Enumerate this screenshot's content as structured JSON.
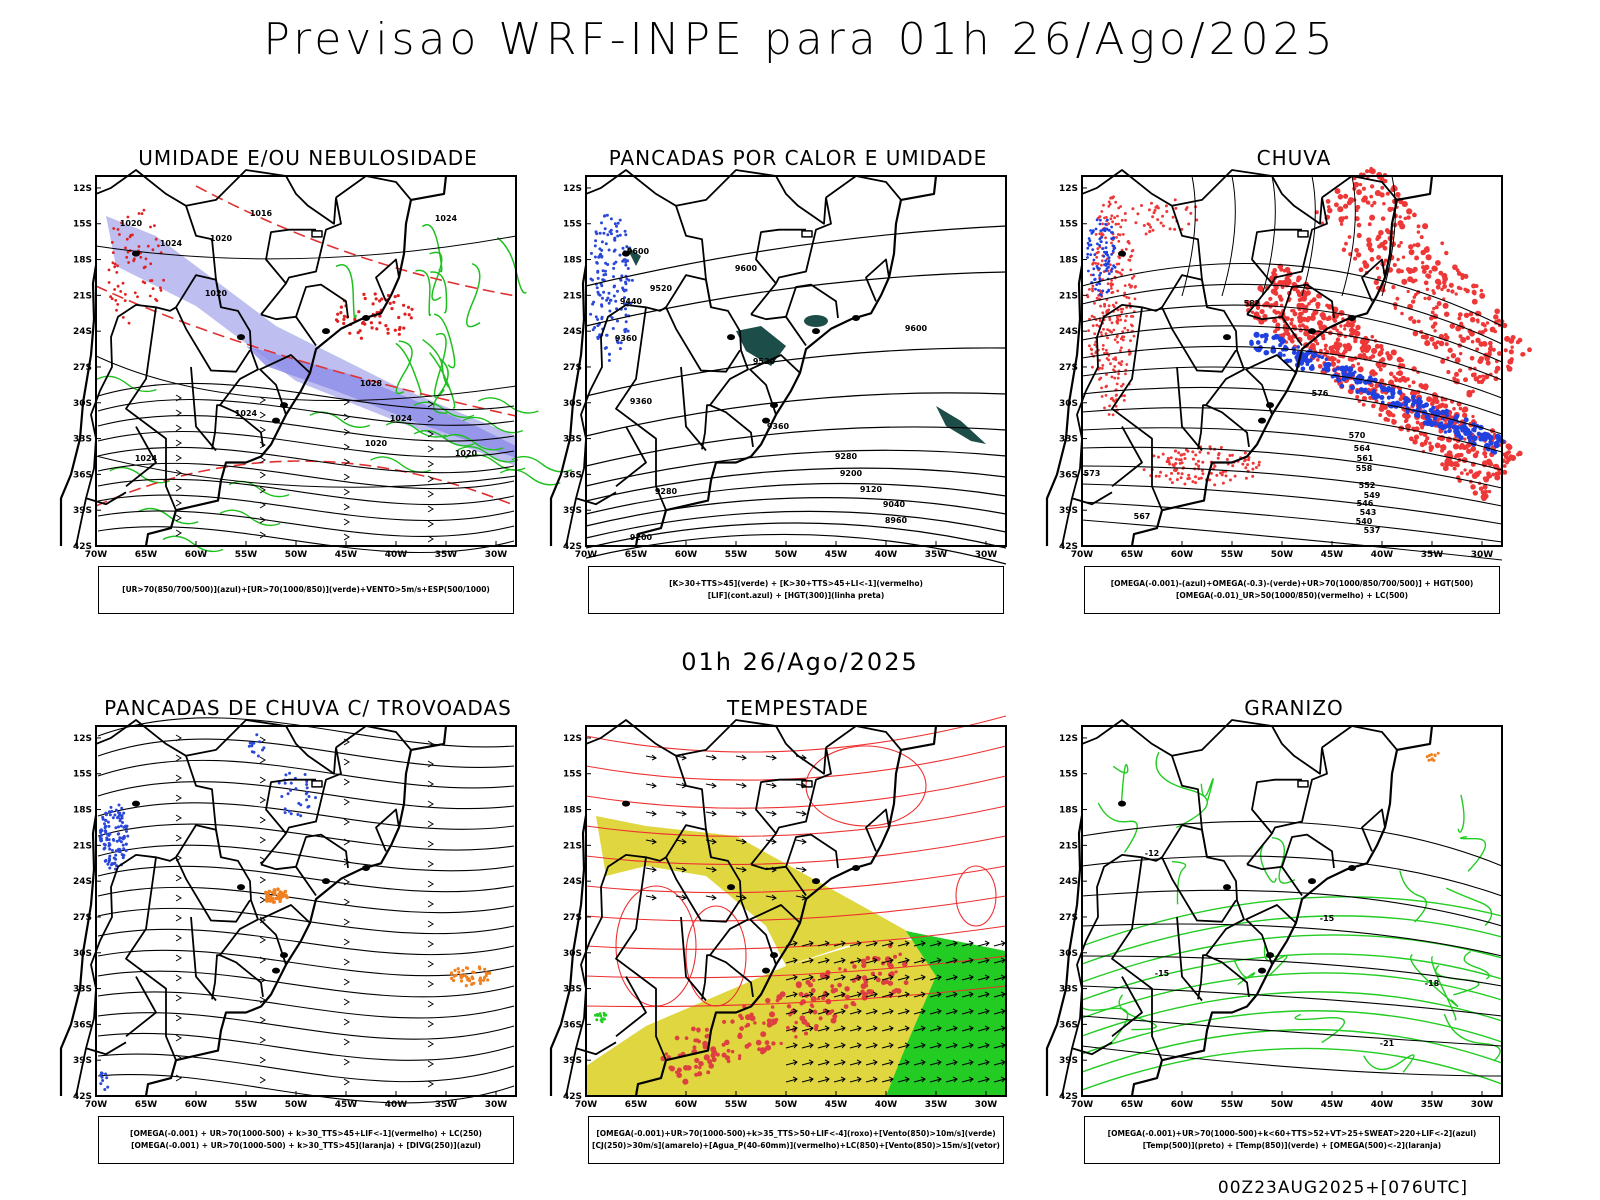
{
  "header": {
    "title": "Previsao WRF-INPE  para 01h 26/Ago/2025"
  },
  "middle": {
    "title": "01h 26/Ago/2025"
  },
  "footer": {
    "run": "00Z23AUG2025+[076UTC]"
  },
  "axes": {
    "yticks": [
      "12S",
      "15S",
      "18S",
      "21S",
      "24S",
      "27S",
      "30S",
      "33S",
      "36S",
      "39S",
      "42S"
    ],
    "xticks": [
      "70W",
      "65W",
      "60W",
      "55W",
      "50W",
      "45W",
      "40W",
      "35W",
      "30W"
    ]
  },
  "panels": [
    {
      "title": "UMIDADE E/OU NEBULOSIDADE",
      "legend": [
        "[UR>70(850/700/500)](azul)+[UR>70(1000/850)](verde)+VENTO>5m/s+ESP(500/1000)"
      ],
      "labels": [
        "1020",
        "1016",
        "1020",
        "1024",
        "1020",
        "1024",
        "1028",
        "1024",
        "1024",
        "1020",
        "1024",
        "1020"
      ]
    },
    {
      "title": "PANCADAS POR CALOR E UMIDADE",
      "legend": [
        "[K>30+TTS>45](verde) + [K>30+TTS>45+LI<-1](vermelho)",
        "[LIF](cont.azul) + [HGT(300)](linha preta)"
      ],
      "labels": [
        "9600",
        "9520",
        "9600",
        "9440",
        "9520",
        "9600",
        "9360",
        "9360",
        "9360",
        "9280",
        "9200",
        "9120",
        "9040",
        "8960",
        "9280",
        "9200"
      ]
    },
    {
      "title": "CHUVA",
      "legend": [
        "[OMEGA(-0.001)-(azul)+OMEGA(-0.3)-(verde)+UR>70(1000/850/700/500)] + HGT(500)",
        "[OMEGA(-0.01)_UR>50(1000/850)(vermelho) + LC(500)"
      ],
      "labels": [
        "582",
        "576",
        "573",
        "570",
        "567",
        "564",
        "561",
        "558",
        "552",
        "549",
        "546",
        "543",
        "540",
        "537"
      ]
    },
    {
      "title": "PANCADAS DE CHUVA C/ TROVOADAS",
      "legend": [
        "[OMEGA(-0.001) + UR>70(1000-500) + k>30_TTS>45+LIF<-1](vermelho) + LC(250)",
        "[OMEGA(-0.001) + UR>70(1000-500) + k>30_TTS>45](laranja) + [DIVG(250)](azul)"
      ],
      "labels": []
    },
    {
      "title": "TEMPESTADE",
      "legend": [
        "[OMEGA(-0.001)+UR>70(1000-500)+k>35_TTS>50+LIF<-4](roxo)+[Vento(850)>10m/s](verde)",
        "[CJ(250)>30m/s](amarelo)+[Agua_P(40-60mm)](vermelho)+LC(850)+[Vento(850)>15m/s](vetor)"
      ],
      "labels": []
    },
    {
      "title": "GRANIZO",
      "legend": [
        "[OMEGA(-0.001)+UR>70(1000-500)+k<60+TTS>52+VT>25+SWEAT>220+LIF<-2](azul)",
        "[Temp(500)](preto) + [Temp(850)](verde) + [OMEGA(500)<-2](laranja)"
      ],
      "labels": [
        "-12",
        "-15",
        "-15",
        "-18",
        "-21"
      ]
    }
  ]
}
